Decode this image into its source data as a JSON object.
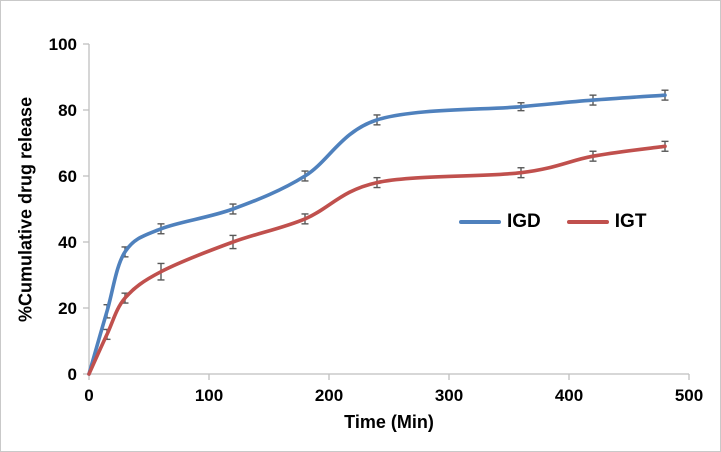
{
  "chart_data": {
    "type": "line",
    "title": "",
    "xlabel": "Time (Min)",
    "ylabel": "%Cumulative drug release",
    "xlim": [
      0,
      500
    ],
    "ylim": [
      0,
      100
    ],
    "xticks": [
      0,
      100,
      200,
      300,
      400,
      500
    ],
    "yticks": [
      0,
      20,
      40,
      60,
      80,
      100
    ],
    "grid": false,
    "legend_position": "inside-right-middle",
    "x": [
      0,
      15,
      30,
      60,
      120,
      180,
      240,
      360,
      420,
      480
    ],
    "series": [
      {
        "name": "IGD",
        "color": "#4F81BD",
        "values": [
          0,
          19,
          37,
          44,
          50,
          60,
          77,
          81,
          83,
          84.5
        ],
        "errors": [
          0,
          2,
          1.5,
          1.5,
          1.5,
          1.5,
          1.5,
          1.2,
          1.5,
          1.5
        ]
      },
      {
        "name": "IGT",
        "color": "#C0504D",
        "values": [
          0,
          12,
          23,
          31,
          40,
          47,
          58,
          61,
          66,
          69
        ],
        "errors": [
          0,
          1.5,
          1.5,
          2.5,
          2,
          1.5,
          1.5,
          1.5,
          1.5,
          1.5
        ]
      }
    ],
    "error_bar_color": "#595959",
    "axis_color": "#BFBFBF"
  }
}
